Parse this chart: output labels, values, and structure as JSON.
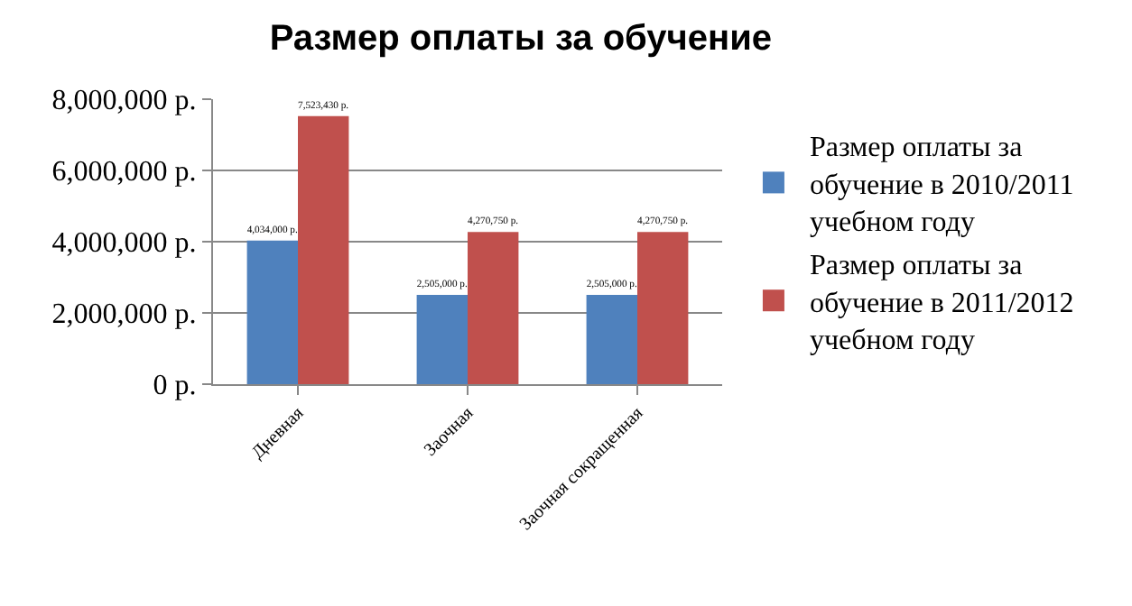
{
  "chart_data": {
    "type": "bar",
    "title": "Размер оплаты за обучение",
    "categories": [
      "Дневная",
      "Заочная",
      "Заочная сокращенная"
    ],
    "series": [
      {
        "name": "Размер оплаты за обучение в 2010/2011 учебном году",
        "color": "#4f81bd",
        "values": [
          4034000,
          2505000,
          2505000
        ],
        "value_labels": [
          "4,034,000 р.",
          "2,505,000 р.",
          "2,505,000 р."
        ]
      },
      {
        "name": "Размер оплаты за обучение в 2011/2012 учебном году",
        "color": "#c0504d",
        "values": [
          7523430,
          4270750,
          4270750
        ],
        "value_labels": [
          "7,523,430 р.",
          "4,270,750 р.",
          "4,270,750 р."
        ]
      }
    ],
    "ylim": [
      0,
      8000000
    ],
    "yticks": [
      {
        "value": 0,
        "label": "0 р."
      },
      {
        "value": 2000000,
        "label": "2,000,000 р."
      },
      {
        "value": 4000000,
        "label": "4,000,000 р."
      },
      {
        "value": 6000000,
        "label": "6,000,000 р."
      },
      {
        "value": 8000000,
        "label": "8,000,000 р."
      }
    ],
    "grid": "y",
    "legend": "right"
  }
}
